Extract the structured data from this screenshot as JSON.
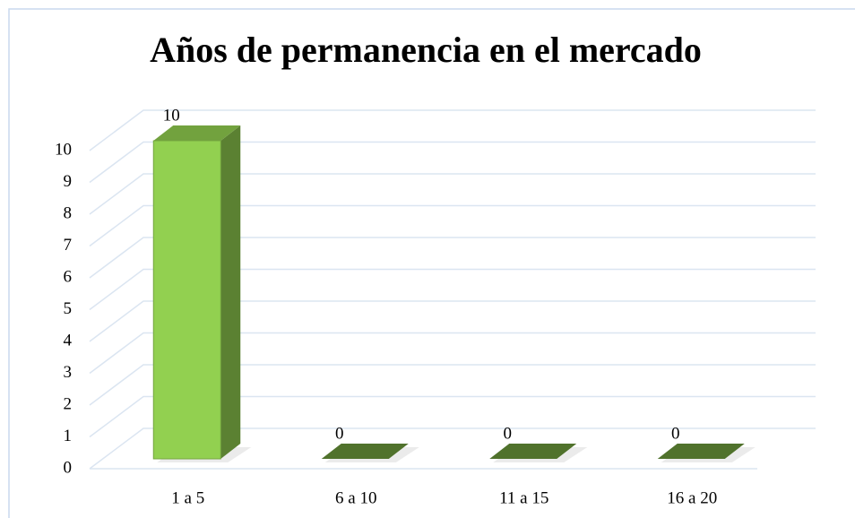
{
  "chart_data": {
    "type": "bar3d",
    "title": "Años de permanencia en el mercado",
    "categories": [
      "1 a 5",
      "6 a 10",
      "11 a 15",
      "16 a 20"
    ],
    "values": [
      10,
      0,
      0,
      0
    ],
    "color": "#92d050",
    "ylim": [
      0,
      10
    ],
    "yticks": [
      0,
      1,
      2,
      3,
      4,
      5,
      6,
      7,
      8,
      9,
      10
    ],
    "grid": true
  }
}
